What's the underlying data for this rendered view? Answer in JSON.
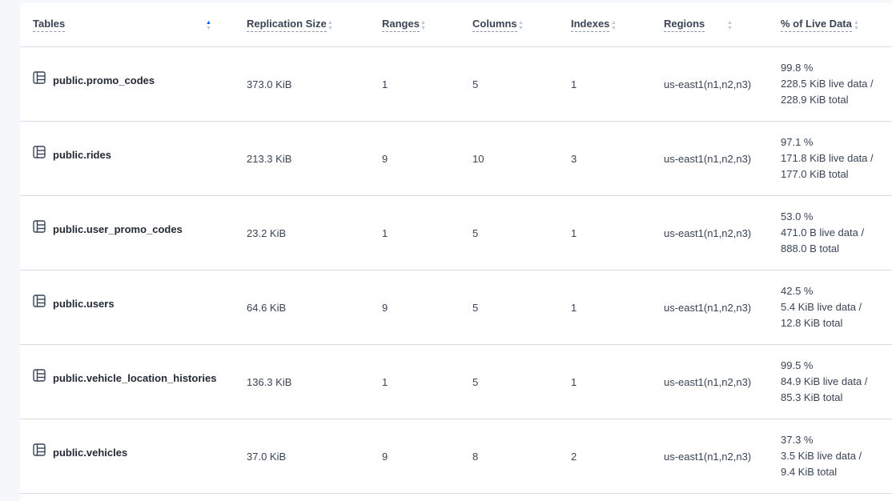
{
  "columns": [
    {
      "label": "Tables",
      "sort": "asc"
    },
    {
      "label": "Replication Size",
      "sort": "none"
    },
    {
      "label": "Ranges",
      "sort": "none"
    },
    {
      "label": "Columns",
      "sort": "none"
    },
    {
      "label": "Indexes",
      "sort": "none"
    },
    {
      "label": "Regions",
      "sort": "none"
    },
    {
      "label": "% of Live Data",
      "sort": "none"
    }
  ],
  "rows": [
    {
      "table": "public.promo_codes",
      "size": "373.0 KiB",
      "ranges": "1",
      "columns": "5",
      "indexes": "1",
      "regions": "us-east1(n1,n2,n3)",
      "pct": "99.8 %",
      "live": "228.5 KiB live data /",
      "total": "228.9 KiB total"
    },
    {
      "table": "public.rides",
      "size": "213.3 KiB",
      "ranges": "9",
      "columns": "10",
      "indexes": "3",
      "regions": "us-east1(n1,n2,n3)",
      "pct": "97.1 %",
      "live": "171.8 KiB live data /",
      "total": "177.0 KiB total"
    },
    {
      "table": "public.user_promo_codes",
      "size": "23.2 KiB",
      "ranges": "1",
      "columns": "5",
      "indexes": "1",
      "regions": "us-east1(n1,n2,n3)",
      "pct": "53.0 %",
      "live": "471.0 B live data /",
      "total": "888.0 B total"
    },
    {
      "table": "public.users",
      "size": "64.6 KiB",
      "ranges": "9",
      "columns": "5",
      "indexes": "1",
      "regions": "us-east1(n1,n2,n3)",
      "pct": "42.5 %",
      "live": "5.4 KiB live data /",
      "total": "12.8 KiB total"
    },
    {
      "table": "public.vehicle_location_histories",
      "size": "136.3 KiB",
      "ranges": "1",
      "columns": "5",
      "indexes": "1",
      "regions": "us-east1(n1,n2,n3)",
      "pct": "99.5 %",
      "live": "84.9 KiB live data /",
      "total": "85.3 KiB total"
    },
    {
      "table": "public.vehicles",
      "size": "37.0 KiB",
      "ranges": "9",
      "columns": "8",
      "indexes": "2",
      "regions": "us-east1(n1,n2,n3)",
      "pct": "37.3 %",
      "live": "3.5 KiB live data /",
      "total": "9.4 KiB total"
    }
  ]
}
